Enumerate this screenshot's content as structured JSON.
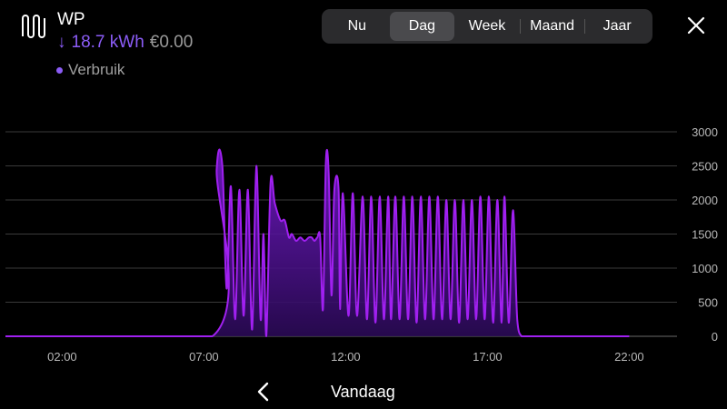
{
  "header": {
    "title": "WP",
    "usage_arrow": "↓",
    "usage_value": "18.7 kWh",
    "cost": "€0.00",
    "legend_label": "Verbruik",
    "icon": "heat-pump-icon"
  },
  "tabs": [
    {
      "label": "Nu",
      "active": false
    },
    {
      "label": "Dag",
      "active": true
    },
    {
      "label": "Week",
      "active": false
    },
    {
      "label": "Maand",
      "active": false
    },
    {
      "label": "Jaar",
      "active": false
    }
  ],
  "footer": {
    "period_label": "Vandaag",
    "prev_icon": "chevron-left-icon"
  },
  "colors": {
    "accent": "#8b5cf6",
    "line": "#a020f0",
    "fill_top": "#7a1bd6",
    "fill_bottom": "#2a0a55"
  },
  "chart_data": {
    "type": "area",
    "ylim": [
      0,
      3000
    ],
    "yticks": [
      0,
      500,
      1000,
      1500,
      2000,
      2500,
      3000
    ],
    "xlim": [
      0,
      24
    ],
    "xticks": [
      {
        "hour": 2,
        "label": "02:00"
      },
      {
        "hour": 7,
        "label": "07:00"
      },
      {
        "hour": 12,
        "label": "12:00"
      },
      {
        "hour": 17,
        "label": "17:00"
      },
      {
        "hour": 22,
        "label": "22:00"
      }
    ],
    "series": [
      {
        "values_hour": [
          0,
          7.3,
          7.45,
          7.65,
          7.8,
          7.95,
          8.1,
          8.25,
          8.4,
          8.55,
          8.7,
          8.85,
          9.0,
          9.1,
          9.2,
          9.35,
          9.5,
          9.7,
          9.85,
          10.0,
          10.1,
          10.25,
          10.4,
          10.55,
          10.7,
          10.8,
          10.9,
          11.0,
          11.1,
          11.2,
          11.3,
          11.4,
          11.5,
          11.6,
          11.75,
          11.8,
          11.9,
          12.1,
          12.25,
          12.4,
          12.6,
          12.75,
          12.9,
          13.05,
          13.2,
          13.35,
          13.5,
          13.6,
          13.75,
          13.9,
          14.05,
          14.2,
          14.35,
          14.5,
          14.65,
          14.8,
          14.95,
          15.1,
          15.25,
          15.4,
          15.55,
          15.7,
          15.85,
          16.0,
          16.15,
          16.3,
          16.45,
          16.6,
          16.75,
          16.9,
          17.05,
          17.2,
          17.35,
          17.5,
          17.6,
          17.75,
          17.9,
          18.05,
          18.2,
          18.35,
          18.5,
          18.65,
          18.8,
          18.95,
          19.1,
          19.25,
          19.4,
          19.55,
          19.7,
          22.0
        ],
        "values_w": [
          0,
          0,
          2450,
          2500,
          700,
          2200,
          250,
          2150,
          300,
          2150,
          100,
          2500,
          250,
          1500,
          0,
          2250,
          1950,
          1700,
          1700,
          1450,
          1500,
          1400,
          1450,
          1400,
          1450,
          1450,
          1400,
          1450,
          1450,
          400,
          2550,
          2400,
          600,
          2150,
          2150,
          400,
          2100,
          300,
          2100,
          300,
          2050,
          250,
          2050,
          200,
          2050,
          250,
          2050,
          250,
          2050,
          250,
          2050,
          250,
          2050,
          200,
          2050,
          250,
          2050,
          250,
          2050,
          250,
          2000,
          250,
          2000,
          200,
          2000,
          250,
          2000,
          250,
          2050,
          250,
          2050,
          200,
          2000,
          200,
          2050,
          200,
          1850,
          250,
          0,
          0,
          0,
          0,
          0,
          0,
          0,
          0,
          0,
          0,
          0,
          0
        ]
      }
    ]
  }
}
